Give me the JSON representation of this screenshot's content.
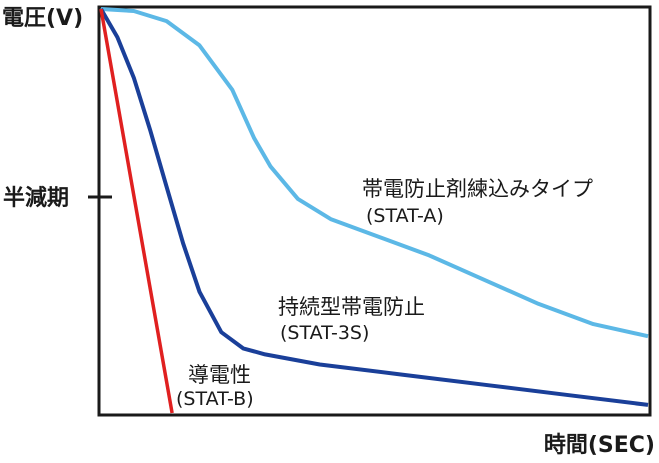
{
  "chart_data": {
    "type": "line",
    "title": "",
    "ylabel": "電圧(V)",
    "xlabel": "時間(SEC)",
    "y_tick_label": "半減期",
    "y_tick_value": 0.5,
    "ylim": [
      0,
      1
    ],
    "xlim": [
      0,
      1
    ],
    "grid": false,
    "legend": "none",
    "series": [
      {
        "name": "帯電防止剤練込みタイプ",
        "code": "(STAT-A)",
        "color": "#5cb8e6",
        "x": [
          0.0,
          0.06,
          0.12,
          0.18,
          0.24,
          0.28,
          0.31,
          0.36,
          0.42,
          0.5,
          0.6,
          0.7,
          0.8,
          0.9,
          1.0
        ],
        "y": [
          1.0,
          0.995,
          0.97,
          0.91,
          0.8,
          0.68,
          0.61,
          0.53,
          0.48,
          0.44,
          0.39,
          0.33,
          0.27,
          0.22,
          0.19
        ]
      },
      {
        "name": "持続型帯電防止",
        "code": "(STAT-3S)",
        "color": "#1a3f99",
        "x": [
          0.0,
          0.03,
          0.06,
          0.09,
          0.12,
          0.15,
          0.18,
          0.22,
          0.26,
          0.3,
          0.4,
          0.55,
          0.7,
          0.85,
          1.0
        ],
        "y": [
          1.0,
          0.93,
          0.83,
          0.7,
          0.56,
          0.42,
          0.3,
          0.2,
          0.16,
          0.145,
          0.12,
          0.095,
          0.07,
          0.045,
          0.02
        ]
      },
      {
        "name": "導電性",
        "code": "(STAT-B)",
        "color": "#e02020",
        "x": [
          0.0,
          0.13
        ],
        "y": [
          1.0,
          0.0
        ]
      }
    ]
  }
}
